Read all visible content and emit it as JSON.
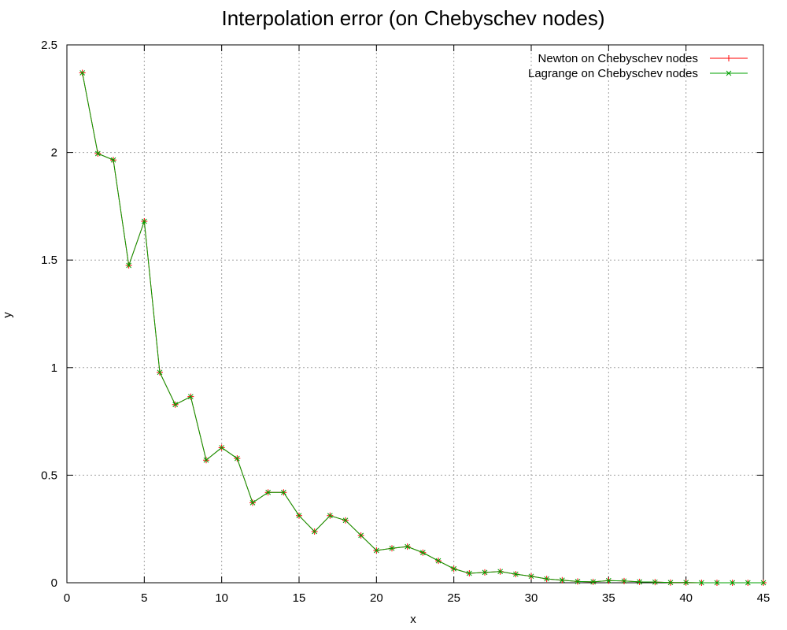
{
  "chart_data": {
    "type": "line",
    "title": "Interpolation error (on Chebyschev nodes)",
    "xlabel": "x",
    "ylabel": "y",
    "xlim": [
      0,
      45
    ],
    "ylim": [
      0,
      2.5
    ],
    "grid": true,
    "legend_position": "top-right",
    "xticks": [
      0,
      5,
      10,
      15,
      20,
      25,
      30,
      35,
      40,
      45
    ],
    "yticks": [
      0,
      0.5,
      1,
      1.5,
      2,
      2.5
    ],
    "xtick_labels": [
      "0",
      "5",
      "10",
      "15",
      "20",
      "25",
      "30",
      "35",
      "40",
      "45"
    ],
    "ytick_labels": [
      "0",
      "0.5",
      "1",
      "1.5",
      "2",
      "2.5"
    ],
    "x": [
      1,
      2,
      3,
      4,
      5,
      6,
      7,
      8,
      9,
      10,
      11,
      12,
      13,
      14,
      15,
      16,
      17,
      18,
      19,
      20,
      21,
      22,
      23,
      24,
      25,
      26,
      27,
      28,
      29,
      30,
      31,
      32,
      33,
      34,
      35,
      36,
      37,
      38,
      39,
      40,
      41,
      42,
      43,
      44,
      45
    ],
    "series": [
      {
        "name": "Newton on Chebyschev nodes",
        "color": "#ff0000",
        "marker": "plus",
        "values": [
          2.37,
          1.995,
          1.965,
          1.475,
          1.68,
          0.978,
          0.828,
          0.865,
          0.57,
          0.628,
          0.578,
          0.372,
          0.42,
          0.42,
          0.312,
          0.238,
          0.312,
          0.29,
          0.22,
          0.15,
          0.16,
          0.168,
          0.14,
          0.102,
          0.065,
          0.044,
          0.048,
          0.052,
          0.04,
          0.03,
          0.018,
          0.012,
          0.006,
          0.004,
          0.01,
          0.008,
          0.004,
          0.003,
          0.001,
          0.001,
          0.0,
          0.0,
          0.0,
          0.0,
          0.0
        ]
      },
      {
        "name": "Lagrange on Chebyschev nodes",
        "color": "#00a000",
        "marker": "cross",
        "values": [
          2.37,
          1.995,
          1.965,
          1.475,
          1.68,
          0.978,
          0.828,
          0.865,
          0.57,
          0.628,
          0.578,
          0.372,
          0.42,
          0.42,
          0.312,
          0.238,
          0.312,
          0.29,
          0.22,
          0.15,
          0.16,
          0.168,
          0.14,
          0.102,
          0.065,
          0.044,
          0.048,
          0.052,
          0.04,
          0.03,
          0.018,
          0.012,
          0.006,
          0.004,
          0.01,
          0.008,
          0.004,
          0.003,
          0.001,
          0.001,
          0.0,
          0.0,
          0.0,
          0.0,
          0.0
        ]
      }
    ]
  }
}
